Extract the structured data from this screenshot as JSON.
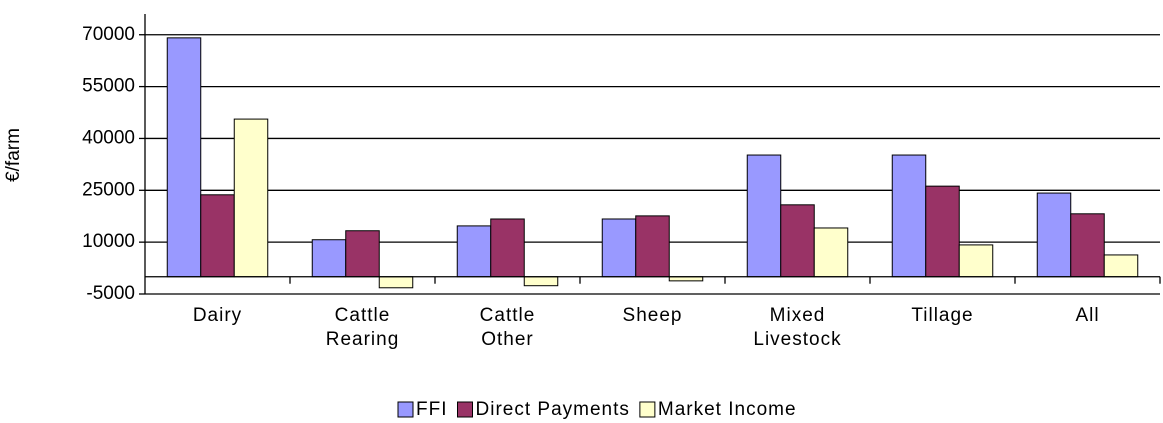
{
  "chart_data": {
    "type": "bar",
    "y_label": "€/farm",
    "categories": [
      "Dairy",
      "Cattle Rearing",
      "Cattle Other",
      "Sheep",
      "Mixed Livestock",
      "Tillage",
      "All"
    ],
    "series": [
      {
        "name": "FFI",
        "color": "#9999ff",
        "values": [
          69100,
          10700,
          14700,
          16700,
          35200,
          35200,
          24200
        ]
      },
      {
        "name": "Direct Payments",
        "color": "#993366",
        "values": [
          23700,
          13300,
          16700,
          17600,
          20800,
          26200,
          18200
        ]
      },
      {
        "name": "Market Income",
        "color": "#ffffcc",
        "values": [
          45600,
          -3200,
          -2600,
          -1200,
          14100,
          9200,
          6300
        ]
      }
    ],
    "ylim": [
      -5000,
      76000
    ],
    "yticks": [
      -5000,
      10000,
      25000,
      40000,
      55000,
      70000
    ],
    "grid": true
  }
}
